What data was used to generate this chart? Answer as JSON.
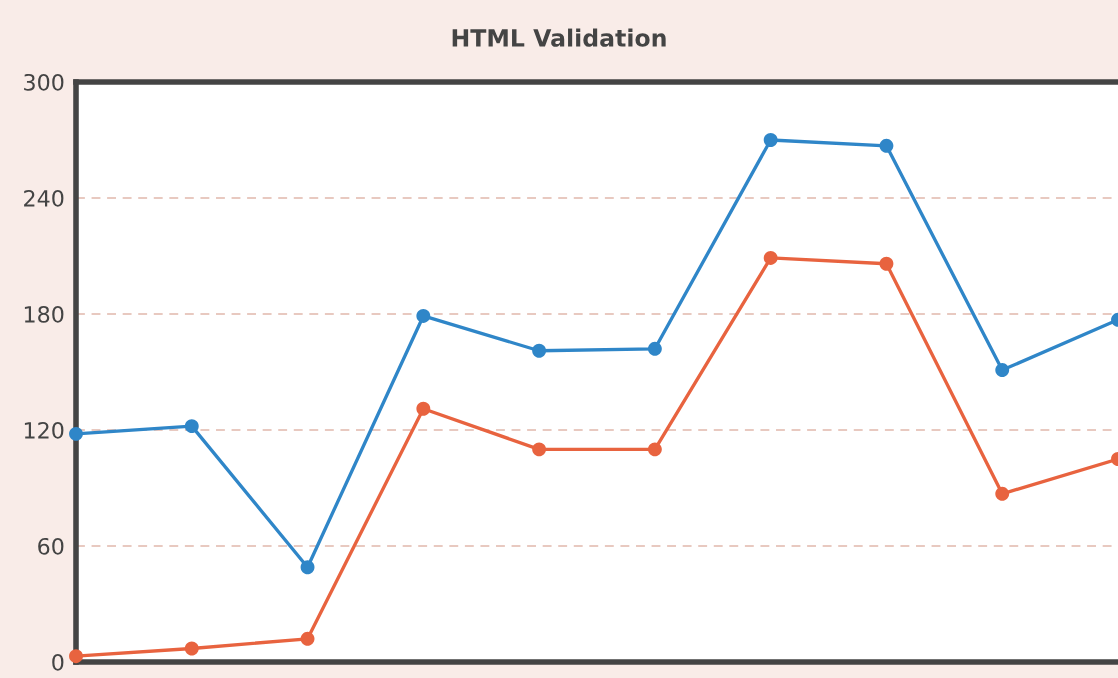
{
  "chart_data": {
    "type": "line",
    "title": "HTML Validation",
    "categories": [
      null,
      null,
      null,
      null,
      null,
      null,
      null,
      null,
      null,
      null
    ],
    "series": [
      {
        "color": "#2f86c8",
        "values": [
          118,
          122,
          49,
          179,
          161,
          162,
          270,
          267,
          151,
          177
        ]
      },
      {
        "color": "#e8633f",
        "values": [
          3,
          7,
          12,
          131,
          110,
          110,
          209,
          206,
          87,
          105
        ]
      }
    ],
    "ylim": [
      0,
      300
    ],
    "yticks": [
      0,
      60,
      120,
      180,
      240,
      300
    ],
    "grid": "y",
    "marker": "circle",
    "line_style": "solid",
    "tick_labels": "y"
  }
}
